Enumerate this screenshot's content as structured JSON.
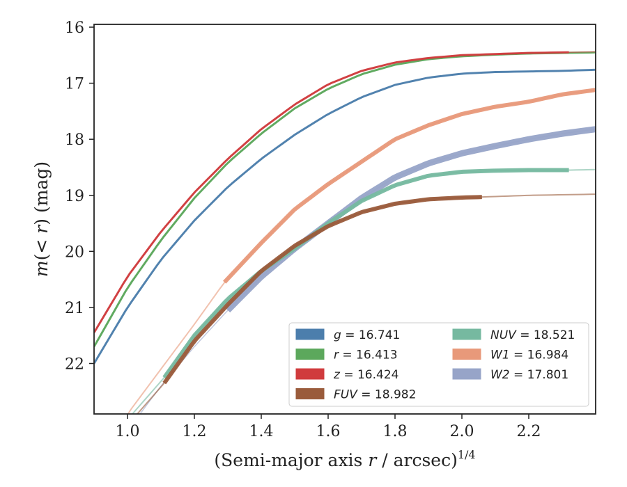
{
  "chart_data": {
    "type": "line",
    "xlabel": "(Semi-major axis r / arcsec)^1/4",
    "xlabel_parts": {
      "main": "(Semi-major axis ",
      "r": "r",
      "rest": " / arcsec)",
      "sup": "1/4"
    },
    "ylabel": "m(< r) (mag)",
    "ylabel_parts": {
      "m": "m",
      "open": "(",
      "lt": "< ",
      "r": "r",
      "close": ")",
      "unit": " (mag)"
    },
    "xlim": [
      0.9,
      2.4
    ],
    "ylim": [
      22.9,
      15.95
    ],
    "y_inverted": true,
    "x_ticks": [
      1.0,
      1.2,
      1.4,
      1.6,
      1.8,
      2.0,
      2.2
    ],
    "x_tick_labels": [
      "1.0",
      "1.2",
      "1.4",
      "1.6",
      "1.8",
      "2.0",
      "2.2"
    ],
    "y_ticks": [
      16,
      17,
      18,
      19,
      20,
      21,
      22
    ],
    "y_tick_labels": [
      "16",
      "17",
      "18",
      "19",
      "20",
      "21",
      "22"
    ],
    "grid": false,
    "legend_position": "lower-right",
    "series": [
      {
        "name": "g = 16.741",
        "band": "g",
        "value": "16.741",
        "color": "#4c7eac",
        "x": [
          0.9,
          1.0,
          1.1,
          1.2,
          1.3,
          1.4,
          1.5,
          1.6,
          1.7,
          1.8,
          1.9,
          2.0,
          2.1,
          2.2,
          2.3,
          2.4
        ],
        "y": [
          22.0,
          21.0,
          20.15,
          19.45,
          18.85,
          18.35,
          17.92,
          17.55,
          17.25,
          17.03,
          16.9,
          16.83,
          16.8,
          16.79,
          16.78,
          16.76
        ],
        "thick_start": 0.9,
        "thick_end": 2.4,
        "thick_width": 3,
        "thin_width": 1.5
      },
      {
        "name": "r = 16.413",
        "band": "r",
        "value": "16.413",
        "color": "#5ca85c",
        "x": [
          0.9,
          1.0,
          1.1,
          1.2,
          1.3,
          1.4,
          1.5,
          1.6,
          1.7,
          1.8,
          1.9,
          2.0,
          2.1,
          2.2,
          2.3,
          2.4
        ],
        "y": [
          21.7,
          20.65,
          19.8,
          19.05,
          18.42,
          17.9,
          17.45,
          17.1,
          16.84,
          16.67,
          16.57,
          16.52,
          16.49,
          16.47,
          16.46,
          16.45
        ],
        "thick_start": 0.9,
        "thick_end": 2.4,
        "thick_width": 3,
        "thin_width": 1.5
      },
      {
        "name": "z = 16.424",
        "band": "z",
        "value": "16.424",
        "color": "#d03b3d",
        "x": [
          0.9,
          1.0,
          1.1,
          1.2,
          1.3,
          1.4,
          1.5,
          1.6,
          1.7,
          1.8,
          1.9,
          2.0,
          2.1,
          2.2,
          2.3,
          2.4
        ],
        "y": [
          21.45,
          20.45,
          19.65,
          18.95,
          18.35,
          17.82,
          17.38,
          17.02,
          16.78,
          16.63,
          16.55,
          16.5,
          16.48,
          16.46,
          16.45,
          16.44
        ],
        "thick_start": 0.9,
        "thick_end": 2.32,
        "thick_width": 3,
        "thin_width": 1.5
      },
      {
        "name": "FUV = 18.982",
        "band": "FUV",
        "value": "18.982",
        "color": "#9a5b3b",
        "x": [
          0.9,
          1.0,
          1.11,
          1.2,
          1.3,
          1.4,
          1.5,
          1.6,
          1.7,
          1.8,
          1.9,
          2.0,
          2.06,
          2.2,
          2.4
        ],
        "y": [
          24.0,
          23.1,
          22.35,
          21.6,
          20.95,
          20.35,
          19.9,
          19.55,
          19.3,
          19.15,
          19.07,
          19.04,
          19.03,
          19.0,
          18.98
        ],
        "thick_start": 1.11,
        "thick_end": 2.06,
        "thick_width": 6,
        "thin_width": 2
      },
      {
        "name": "NUV = 18.521",
        "band": "NUV",
        "value": "18.521",
        "color": "#76b9a0",
        "x": [
          0.9,
          1.0,
          1.11,
          1.2,
          1.3,
          1.4,
          1.5,
          1.6,
          1.7,
          1.8,
          1.9,
          2.0,
          2.1,
          2.2,
          2.32,
          2.4
        ],
        "y": [
          24.0,
          23.0,
          22.25,
          21.5,
          20.85,
          20.35,
          19.95,
          19.5,
          19.1,
          18.82,
          18.65,
          18.58,
          18.56,
          18.55,
          18.55,
          18.54
        ],
        "thick_start": 1.11,
        "thick_end": 2.32,
        "thick_width": 6,
        "thin_width": 2
      },
      {
        "name": "W1 = 16.984",
        "band": "W1",
        "value": "16.984",
        "color": "#e8997a",
        "x": [
          0.9,
          1.0,
          1.1,
          1.2,
          1.29,
          1.4,
          1.5,
          1.6,
          1.7,
          1.8,
          1.9,
          2.0,
          2.1,
          2.2,
          2.3,
          2.4
        ],
        "y": [
          24.0,
          22.9,
          22.1,
          21.3,
          20.55,
          19.85,
          19.25,
          18.8,
          18.4,
          18.0,
          17.75,
          17.55,
          17.42,
          17.33,
          17.2,
          17.12
        ],
        "thick_start": 1.29,
        "thick_end": 2.4,
        "thick_width": 6,
        "thin_width": 2
      },
      {
        "name": "W2 = 17.801",
        "band": "W2",
        "value": "17.801",
        "color": "#97a4c8",
        "x": [
          0.9,
          1.0,
          1.1,
          1.2,
          1.3,
          1.4,
          1.5,
          1.6,
          1.7,
          1.8,
          1.9,
          2.0,
          2.1,
          2.2,
          2.3,
          2.4
        ],
        "y": [
          24.0,
          23.2,
          22.4,
          21.7,
          21.05,
          20.45,
          19.95,
          19.5,
          19.05,
          18.68,
          18.43,
          18.25,
          18.12,
          18.0,
          17.9,
          17.82
        ],
        "thick_start": 1.3,
        "thick_end": 2.4,
        "thick_width": 9,
        "thin_width": 1.5
      }
    ],
    "legend_order": [
      [
        "g",
        "r",
        "z",
        "FUV"
      ],
      [
        "NUV",
        "W1",
        "W2"
      ]
    ]
  }
}
